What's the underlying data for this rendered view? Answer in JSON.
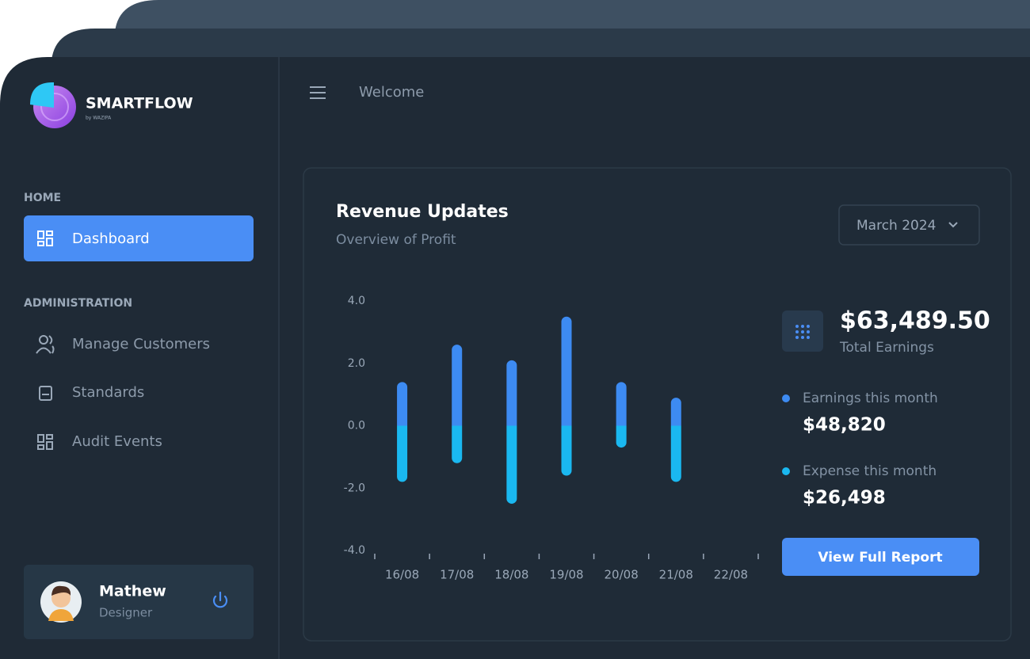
{
  "sidebar": {
    "brand": "SMARTFLOW",
    "brand_sub": "by WAZIPA",
    "sections": [
      {
        "title": "HOME",
        "items": [
          "Dashboard"
        ]
      },
      {
        "title": "ADMINISTRATION",
        "items": [
          "Manage Customers",
          "Standards",
          "Audit Events"
        ]
      }
    ],
    "user": {
      "name": "Mathew",
      "role": "Designer"
    }
  },
  "header": {
    "title": "Welcome"
  },
  "card": {
    "period": "March 2024",
    "total": "$63,489.50",
    "total_label": "Total Earnings",
    "series_totals": [
      "$48,820",
      "$26,498"
    ],
    "button": "View Full Report"
  },
  "chart_data": {
    "type": "bar",
    "stacked": true,
    "title": "Revenue Updates",
    "subtitle": "Overview of Profit",
    "categories": [
      "16/08",
      "17/08",
      "18/08",
      "19/08",
      "20/08",
      "21/08",
      "22/08"
    ],
    "series": [
      {
        "name": "Earnings this month",
        "color": "#3d8bf2",
        "values": [
          1.4,
          2.6,
          2.1,
          3.5,
          1.4,
          0.9,
          null
        ]
      },
      {
        "name": "Expense this month",
        "color": "#1ab8f0",
        "values": [
          -1.8,
          -1.2,
          -2.5,
          -1.6,
          -0.7,
          -1.8,
          null
        ]
      }
    ],
    "ylim": [
      -4,
      4
    ],
    "yticks": [
      {
        "value": 4,
        "label": "4.0"
      },
      {
        "value": 2,
        "label": "2.0"
      },
      {
        "value": 0,
        "label": "0.0"
      },
      {
        "value": -2,
        "label": "-2.0"
      },
      {
        "value": -4,
        "label": "-4.0"
      }
    ],
    "grid": false
  }
}
